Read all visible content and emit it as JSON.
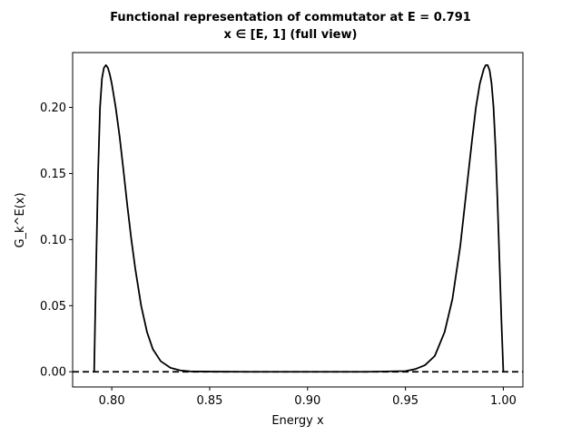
{
  "chart_data": {
    "type": "line",
    "title_line1": "Functional representation of commutator at E = 0.791",
    "title_line2": "x ∈ [E, 1] (full view)",
    "xlabel": "Energy x",
    "ylabel": "G_k^E(x)",
    "xlim": [
      0.78,
      1.01
    ],
    "ylim": [
      -0.0115,
      0.2415
    ],
    "xticks": [
      0.8,
      0.85,
      0.9,
      0.95,
      1.0
    ],
    "xtick_labels": [
      "0.80",
      "0.85",
      "0.90",
      "0.95",
      "1.00"
    ],
    "yticks": [
      0.0,
      0.05,
      0.1,
      0.15,
      0.2
    ],
    "ytick_labels": [
      "0.00",
      "0.05",
      "0.10",
      "0.15",
      "0.20"
    ],
    "grid": false,
    "baseline": {
      "y": 0.0,
      "style": "dashed",
      "color": "#000000"
    },
    "series": [
      {
        "color": "#000000",
        "x": [
          0.791,
          0.792,
          0.793,
          0.794,
          0.795,
          0.796,
          0.797,
          0.798,
          0.799,
          0.8,
          0.802,
          0.804,
          0.806,
          0.808,
          0.81,
          0.812,
          0.815,
          0.818,
          0.821,
          0.825,
          0.83,
          0.835,
          0.84,
          0.85,
          0.87,
          0.9,
          0.93,
          0.95,
          0.955,
          0.96,
          0.965,
          0.97,
          0.974,
          0.978,
          0.981,
          0.984,
          0.986,
          0.988,
          0.99,
          0.991,
          0.992,
          0.993,
          0.994,
          0.995,
          0.996,
          0.997,
          0.998,
          0.999,
          1.0
        ],
        "y": [
          0.0,
          0.08,
          0.15,
          0.2,
          0.222,
          0.23,
          0.232,
          0.23,
          0.225,
          0.218,
          0.2,
          0.178,
          0.152,
          0.125,
          0.1,
          0.078,
          0.05,
          0.03,
          0.017,
          0.008,
          0.003,
          0.001,
          0.0003,
          0.0001,
          0.0,
          0.0,
          0.0,
          0.0005,
          0.002,
          0.005,
          0.012,
          0.03,
          0.055,
          0.095,
          0.135,
          0.175,
          0.2,
          0.218,
          0.229,
          0.232,
          0.232,
          0.228,
          0.218,
          0.2,
          0.17,
          0.13,
          0.085,
          0.04,
          0.0
        ]
      }
    ]
  }
}
